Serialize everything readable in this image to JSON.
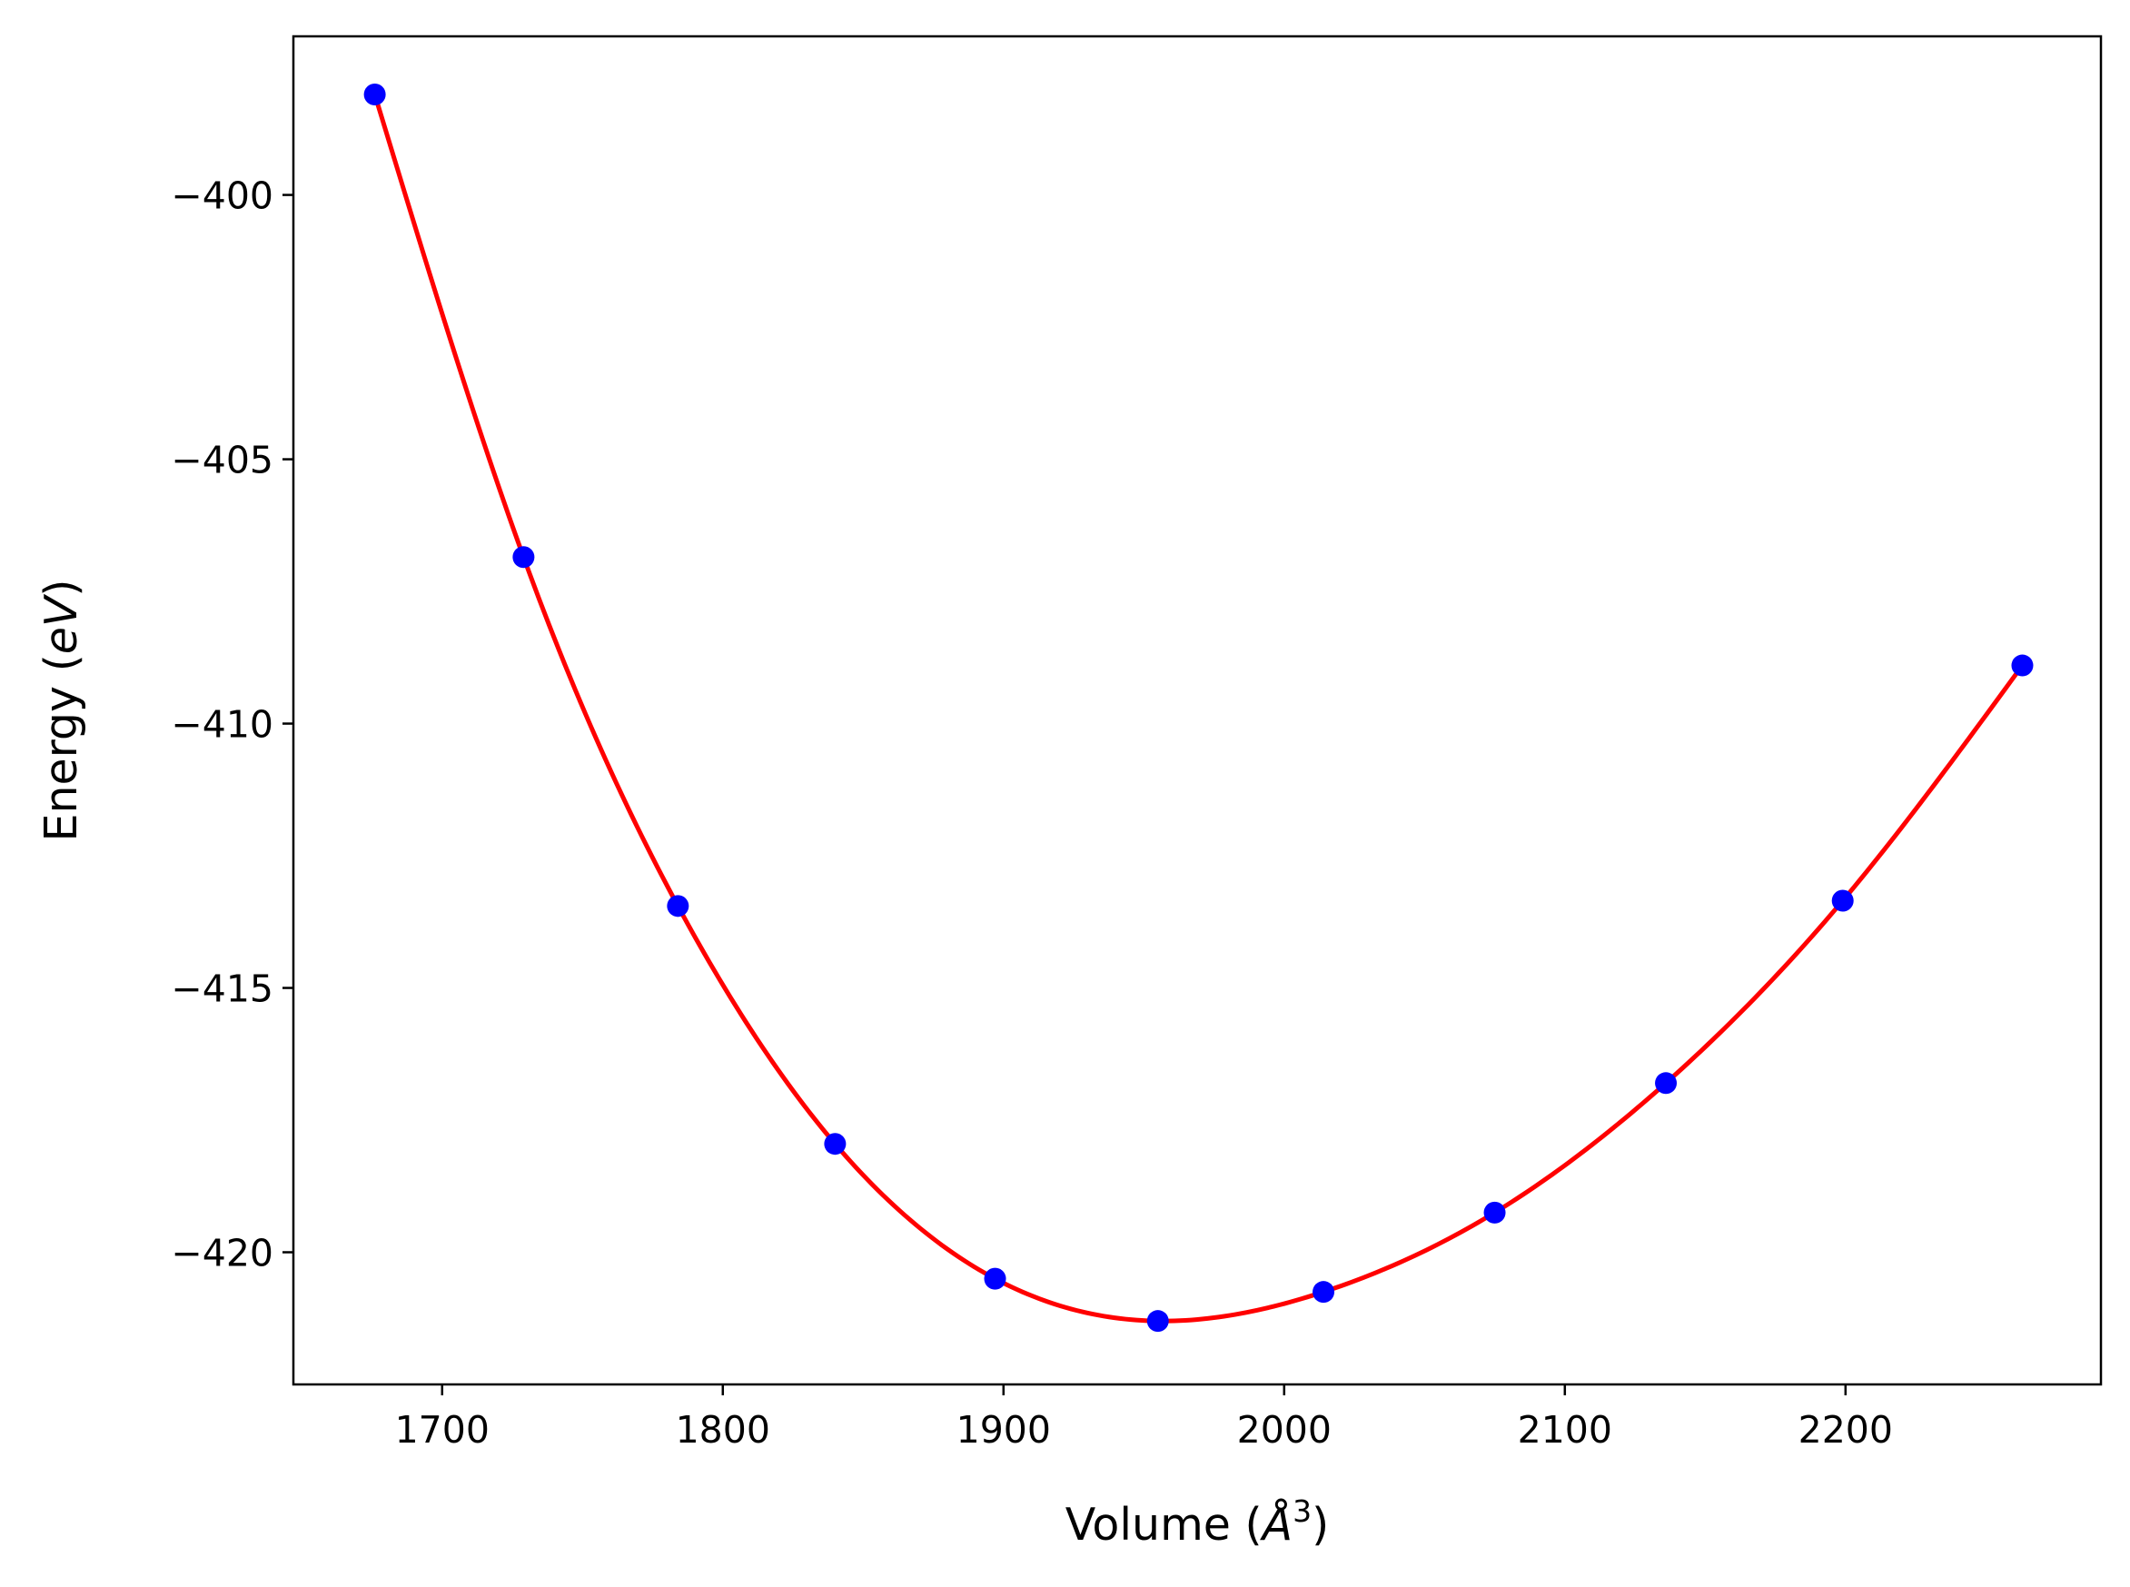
{
  "chart_data": {
    "type": "scatter",
    "title": "",
    "xlabel": "Volume (Å³)",
    "xlabel_base": "Volume (",
    "xlabel_symbol": "Å",
    "xlabel_sup": "3",
    "xlabel_close": ")",
    "ylabel": "Energy (eV)",
    "ylabel_base": "Energy (",
    "ylabel_italic": "eV",
    "ylabel_close": ")",
    "xlim": [
      1647,
      2291
    ],
    "ylim": [
      -422.5,
      -397.0
    ],
    "xticks": [
      1700,
      1800,
      1900,
      2000,
      2100,
      2200
    ],
    "xtick_labels": [
      "1700",
      "1800",
      "1900",
      "2000",
      "2100",
      "2200"
    ],
    "yticks": [
      -400,
      -405,
      -410,
      -415,
      -420
    ],
    "ytick_labels": [
      "−400",
      "−405",
      "−410",
      "−415",
      "−420"
    ],
    "grid": false,
    "legend": "none",
    "series": [
      {
        "type": "scatter",
        "color": "#0000ff",
        "x": [
          1676,
          1729,
          1784,
          1840,
          1897,
          1955,
          2014,
          2075,
          2136,
          2199,
          2263
        ],
        "y": [
          -398.1,
          -406.85,
          -413.45,
          -417.95,
          -420.5,
          -421.3,
          -420.75,
          -419.25,
          -416.8,
          -413.35,
          -408.9
        ]
      },
      {
        "type": "line",
        "color": "#ff0000",
        "fit": "smooth fit curve through data (minimum near 1964, -421.38)"
      }
    ]
  }
}
